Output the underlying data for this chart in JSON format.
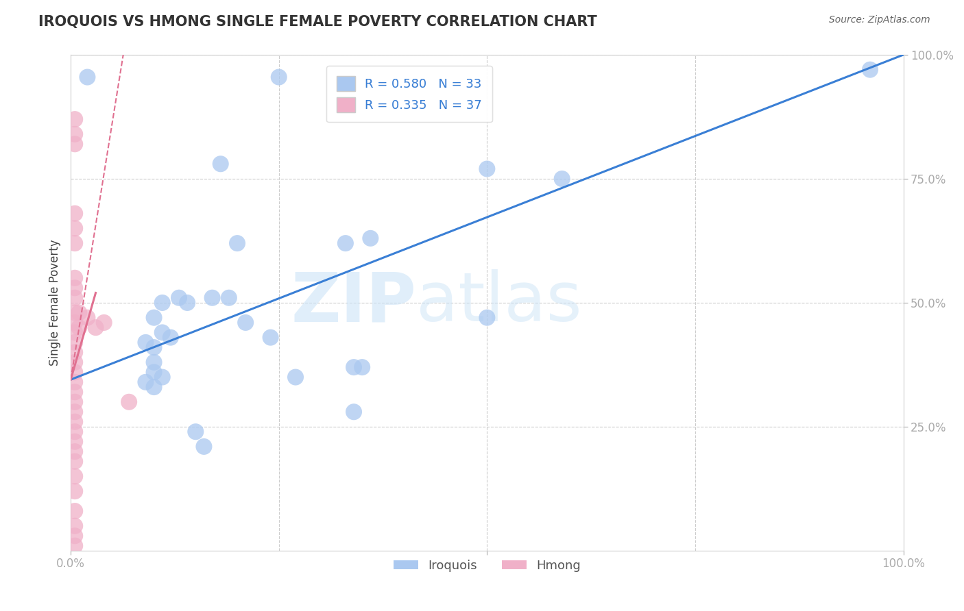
{
  "title": "IROQUOIS VS HMONG SINGLE FEMALE POVERTY CORRELATION CHART",
  "source": "Source: ZipAtlas.com",
  "ylabel": "Single Female Poverty",
  "xlim": [
    0,
    1
  ],
  "ylim": [
    0,
    1
  ],
  "iroquois_color": "#aac8f0",
  "hmong_color": "#f0b0c8",
  "iroquois_line_color": "#3a7fd5",
  "hmong_line_color": "#e07090",
  "iroquois_R": 0.58,
  "iroquois_N": 33,
  "hmong_R": 0.335,
  "hmong_N": 37,
  "legend_R_color": "#3a7fd5",
  "watermark_text": "ZIPatlas",
  "background_color": "#ffffff",
  "grid_color": "#cccccc",
  "iroquois_scatter": [
    [
      0.02,
      0.955
    ],
    [
      0.25,
      0.955
    ],
    [
      0.18,
      0.78
    ],
    [
      0.36,
      0.63
    ],
    [
      0.5,
      0.77
    ],
    [
      0.59,
      0.75
    ],
    [
      0.33,
      0.62
    ],
    [
      0.5,
      0.47
    ],
    [
      0.13,
      0.51
    ],
    [
      0.11,
      0.5
    ],
    [
      0.17,
      0.51
    ],
    [
      0.14,
      0.5
    ],
    [
      0.19,
      0.51
    ],
    [
      0.2,
      0.62
    ],
    [
      0.21,
      0.46
    ],
    [
      0.1,
      0.47
    ],
    [
      0.11,
      0.44
    ],
    [
      0.12,
      0.43
    ],
    [
      0.09,
      0.42
    ],
    [
      0.24,
      0.43
    ],
    [
      0.1,
      0.41
    ],
    [
      0.1,
      0.38
    ],
    [
      0.1,
      0.36
    ],
    [
      0.11,
      0.35
    ],
    [
      0.09,
      0.34
    ],
    [
      0.1,
      0.33
    ],
    [
      0.27,
      0.35
    ],
    [
      0.34,
      0.37
    ],
    [
      0.35,
      0.37
    ],
    [
      0.34,
      0.28
    ],
    [
      0.15,
      0.24
    ],
    [
      0.16,
      0.21
    ],
    [
      0.96,
      0.97
    ]
  ],
  "hmong_scatter": [
    [
      0.005,
      0.87
    ],
    [
      0.005,
      0.84
    ],
    [
      0.005,
      0.82
    ],
    [
      0.005,
      0.68
    ],
    [
      0.005,
      0.65
    ],
    [
      0.005,
      0.62
    ],
    [
      0.005,
      0.55
    ],
    [
      0.005,
      0.53
    ],
    [
      0.005,
      0.51
    ],
    [
      0.005,
      0.48
    ],
    [
      0.005,
      0.46
    ],
    [
      0.005,
      0.44
    ],
    [
      0.005,
      0.42
    ],
    [
      0.005,
      0.4
    ],
    [
      0.005,
      0.38
    ],
    [
      0.005,
      0.36
    ],
    [
      0.005,
      0.34
    ],
    [
      0.005,
      0.32
    ],
    [
      0.005,
      0.3
    ],
    [
      0.005,
      0.28
    ],
    [
      0.005,
      0.26
    ],
    [
      0.005,
      0.24
    ],
    [
      0.005,
      0.22
    ],
    [
      0.005,
      0.2
    ],
    [
      0.005,
      0.18
    ],
    [
      0.005,
      0.15
    ],
    [
      0.005,
      0.12
    ],
    [
      0.005,
      0.08
    ],
    [
      0.005,
      0.05
    ],
    [
      0.005,
      0.03
    ],
    [
      0.005,
      0.01
    ],
    [
      0.01,
      0.48
    ],
    [
      0.01,
      0.45
    ],
    [
      0.02,
      0.47
    ],
    [
      0.03,
      0.45
    ],
    [
      0.04,
      0.46
    ],
    [
      0.07,
      0.3
    ]
  ],
  "iroquois_line": {
    "x0": 0.0,
    "y0": 0.345,
    "x1": 1.0,
    "y1": 1.0
  },
  "hmong_line_solid": {
    "x0": 0.0,
    "y0": 0.345,
    "x1": 0.03,
    "y1": 0.52
  },
  "hmong_line_dashed": {
    "x0": 0.0,
    "y0": 0.345,
    "x1": 0.065,
    "y1": 1.02
  }
}
